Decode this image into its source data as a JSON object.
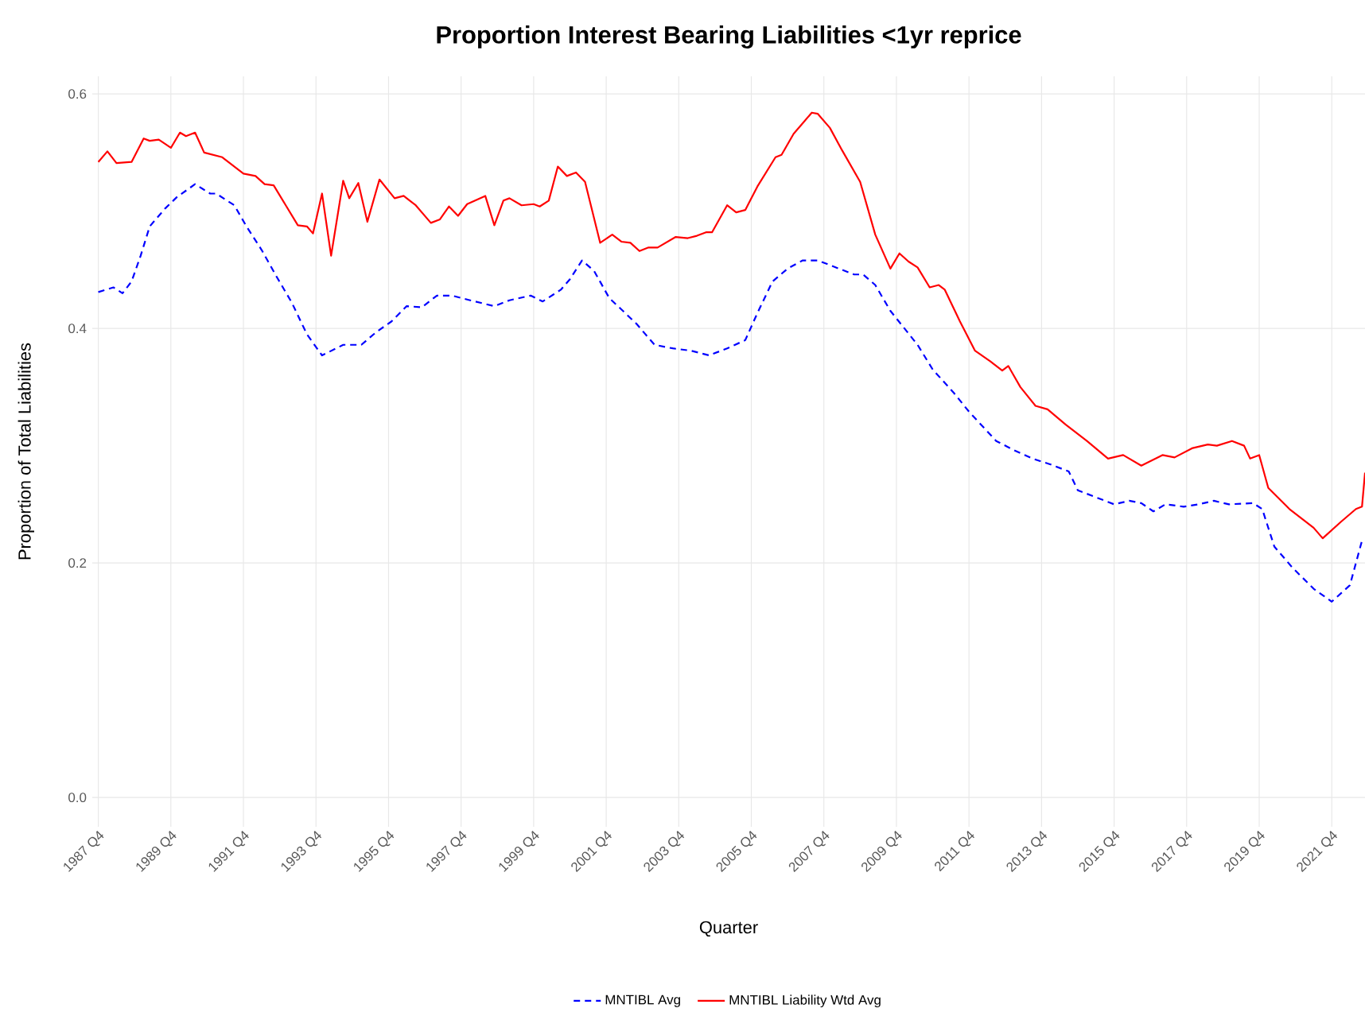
{
  "chart_data": {
    "type": "line",
    "title": "Proportion Interest Bearing Liabilities <1yr reprice",
    "xlabel": "Quarter",
    "ylabel": "Proportion of Total Liabilities",
    "xlim": [
      "1987-08",
      "2022-09"
    ],
    "ylim": [
      -0.025,
      0.615
    ],
    "xticks": [
      {
        "value": "1987-10",
        "label": "1987 Q4"
      },
      {
        "value": "1989-10",
        "label": "1989 Q4"
      },
      {
        "value": "1991-10",
        "label": "1991 Q4"
      },
      {
        "value": "1993-10",
        "label": "1993 Q4"
      },
      {
        "value": "1995-10",
        "label": "1995 Q4"
      },
      {
        "value": "1997-10",
        "label": "1997 Q4"
      },
      {
        "value": "1999-10",
        "label": "1999 Q4"
      },
      {
        "value": "2001-10",
        "label": "2001 Q4"
      },
      {
        "value": "2003-10",
        "label": "2003 Q4"
      },
      {
        "value": "2005-10",
        "label": "2005 Q4"
      },
      {
        "value": "2007-10",
        "label": "2007 Q4"
      },
      {
        "value": "2009-10",
        "label": "2009 Q4"
      },
      {
        "value": "2011-10",
        "label": "2011 Q4"
      },
      {
        "value": "2013-10",
        "label": "2013 Q4"
      },
      {
        "value": "2015-10",
        "label": "2015 Q4"
      },
      {
        "value": "2017-10",
        "label": "2017 Q4"
      },
      {
        "value": "2019-10",
        "label": "2019 Q4"
      },
      {
        "value": "2021-10",
        "label": "2021 Q4"
      }
    ],
    "yticks": [
      {
        "value": 0,
        "label": "0.0"
      },
      0.2,
      0.4,
      0.6
    ],
    "grid": true,
    "legend": "bottom",
    "marker": "none",
    "series": [
      {
        "name": "MNTIBL Avg",
        "color": "#0000ff",
        "line_style": "dashed",
        "x": [
          "1987-10",
          "1988-03",
          "1988-06",
          "1988-09",
          "1988-12",
          "1989-03",
          "1989-08",
          "1989-12",
          "1990-06",
          "1990-11",
          "1991-01",
          "1991-07",
          "1991-11",
          "1992-04",
          "1992-09",
          "1993-02",
          "1993-07",
          "1993-12",
          "1994-07",
          "1995-01",
          "1995-06",
          "1995-11",
          "1996-04",
          "1996-09",
          "1997-02",
          "1997-07",
          "1998-01",
          "1998-09",
          "1999-02",
          "1999-09",
          "2000-01",
          "2000-07",
          "2000-10",
          "2001-02",
          "2001-06",
          "2001-11",
          "2002-08",
          "2003-02",
          "2003-08",
          "2004-02",
          "2004-08",
          "2005-02",
          "2005-08",
          "2005-12",
          "2006-05",
          "2006-10",
          "2007-03",
          "2007-08",
          "2008-03",
          "2008-08",
          "2008-11",
          "2009-03",
          "2009-08",
          "2010-05",
          "2010-10",
          "2011-05",
          "2011-10",
          "2012-07",
          "2013-01",
          "2013-07",
          "2014-01",
          "2014-07",
          "2014-10",
          "2015-05",
          "2015-10",
          "2016-03",
          "2016-07",
          "2016-11",
          "2017-03",
          "2017-09",
          "2018-02",
          "2018-07",
          "2018-12",
          "2019-08",
          "2019-11",
          "2020-03",
          "2020-09",
          "2021-04",
          "2021-10",
          "2022-04",
          "2022-08"
        ],
        "values": [
          0.431,
          0.435,
          0.43,
          0.44,
          0.462,
          0.487,
          0.502,
          0.512,
          0.523,
          0.515,
          0.515,
          0.505,
          0.487,
          0.467,
          0.444,
          0.422,
          0.395,
          0.377,
          0.386,
          0.386,
          0.397,
          0.406,
          0.419,
          0.418,
          0.428,
          0.428,
          0.424,
          0.419,
          0.424,
          0.428,
          0.423,
          0.433,
          0.442,
          0.458,
          0.449,
          0.426,
          0.404,
          0.386,
          0.383,
          0.381,
          0.377,
          0.383,
          0.39,
          0.413,
          0.44,
          0.451,
          0.458,
          0.458,
          0.451,
          0.446,
          0.446,
          0.437,
          0.415,
          0.386,
          0.365,
          0.345,
          0.329,
          0.304,
          0.296,
          0.289,
          0.284,
          0.278,
          0.262,
          0.255,
          0.25,
          0.253,
          0.251,
          0.244,
          0.25,
          0.248,
          0.25,
          0.253,
          0.25,
          0.251,
          0.246,
          0.214,
          0.196,
          0.178,
          0.167,
          0.181,
          0.219
        ]
      },
      {
        "name": "MNTIBL Liability Wtd Avg",
        "color": "#ff0000",
        "line_style": "solid",
        "x": [
          "1987-10",
          "1988-01",
          "1988-04",
          "1988-09",
          "1989-01",
          "1989-03",
          "1989-06",
          "1989-10",
          "1990-01",
          "1990-03",
          "1990-06",
          "1990-09",
          "1991-03",
          "1991-10",
          "1992-02",
          "1992-05",
          "1992-08",
          "1992-12",
          "1993-04",
          "1993-07",
          "1993-09",
          "1993-12",
          "1994-03",
          "1994-07",
          "1994-09",
          "1994-12",
          "1995-03",
          "1995-07",
          "1995-12",
          "1996-03",
          "1996-07",
          "1996-12",
          "1997-03",
          "1997-06",
          "1997-09",
          "1997-12",
          "1998-06",
          "1998-09",
          "1998-12",
          "1999-02",
          "1999-06",
          "1999-10",
          "1999-12",
          "2000-03",
          "2000-06",
          "2000-09",
          "2000-12",
          "2001-03",
          "2001-08",
          "2001-12",
          "2002-03",
          "2002-06",
          "2002-09",
          "2002-12",
          "2003-03",
          "2003-09",
          "2004-01",
          "2004-04",
          "2004-07",
          "2004-09",
          "2005-02",
          "2005-05",
          "2005-08",
          "2005-12",
          "2006-06",
          "2006-08",
          "2006-12",
          "2007-03",
          "2007-06",
          "2007-08",
          "2007-12",
          "2008-04",
          "2008-10",
          "2009-03",
          "2009-08",
          "2009-11",
          "2010-02",
          "2010-05",
          "2010-09",
          "2010-12",
          "2011-02",
          "2011-07",
          "2011-12",
          "2012-05",
          "2012-09",
          "2012-11",
          "2013-03",
          "2013-08",
          "2013-12",
          "2014-06",
          "2015-01",
          "2015-08",
          "2016-01",
          "2016-07",
          "2017-02",
          "2017-06",
          "2017-12",
          "2018-05",
          "2018-08",
          "2019-01",
          "2019-05",
          "2019-07",
          "2019-10",
          "2020-01",
          "2020-08",
          "2020-10",
          "2021-04",
          "2021-07",
          "2022-01",
          "2022-06",
          "2022-08",
          "2022-09"
        ],
        "values": [
          0.542,
          0.551,
          0.541,
          0.542,
          0.562,
          0.56,
          0.561,
          0.554,
          0.567,
          0.564,
          0.567,
          0.55,
          0.546,
          0.532,
          0.53,
          0.523,
          0.522,
          0.505,
          0.488,
          0.487,
          0.481,
          0.515,
          0.462,
          0.526,
          0.511,
          0.524,
          0.491,
          0.527,
          0.511,
          0.513,
          0.505,
          0.49,
          0.493,
          0.504,
          0.496,
          0.506,
          0.513,
          0.488,
          0.509,
          0.511,
          0.505,
          0.506,
          0.504,
          0.509,
          0.538,
          0.53,
          0.533,
          0.525,
          0.473,
          0.48,
          0.474,
          0.473,
          0.466,
          0.469,
          0.469,
          0.478,
          0.477,
          0.479,
          0.482,
          0.482,
          0.505,
          0.499,
          0.501,
          0.521,
          0.546,
          0.548,
          0.566,
          0.575,
          0.584,
          0.583,
          0.571,
          0.552,
          0.525,
          0.48,
          0.451,
          0.464,
          0.457,
          0.452,
          0.435,
          0.437,
          0.433,
          0.406,
          0.381,
          0.372,
          0.364,
          0.368,
          0.35,
          0.334,
          0.331,
          0.318,
          0.304,
          0.289,
          0.292,
          0.283,
          0.292,
          0.29,
          0.298,
          0.301,
          0.3,
          0.304,
          0.3,
          0.289,
          0.292,
          0.264,
          0.246,
          0.242,
          0.23,
          0.221,
          0.235,
          0.246,
          0.248,
          0.277
        ]
      }
    ]
  }
}
